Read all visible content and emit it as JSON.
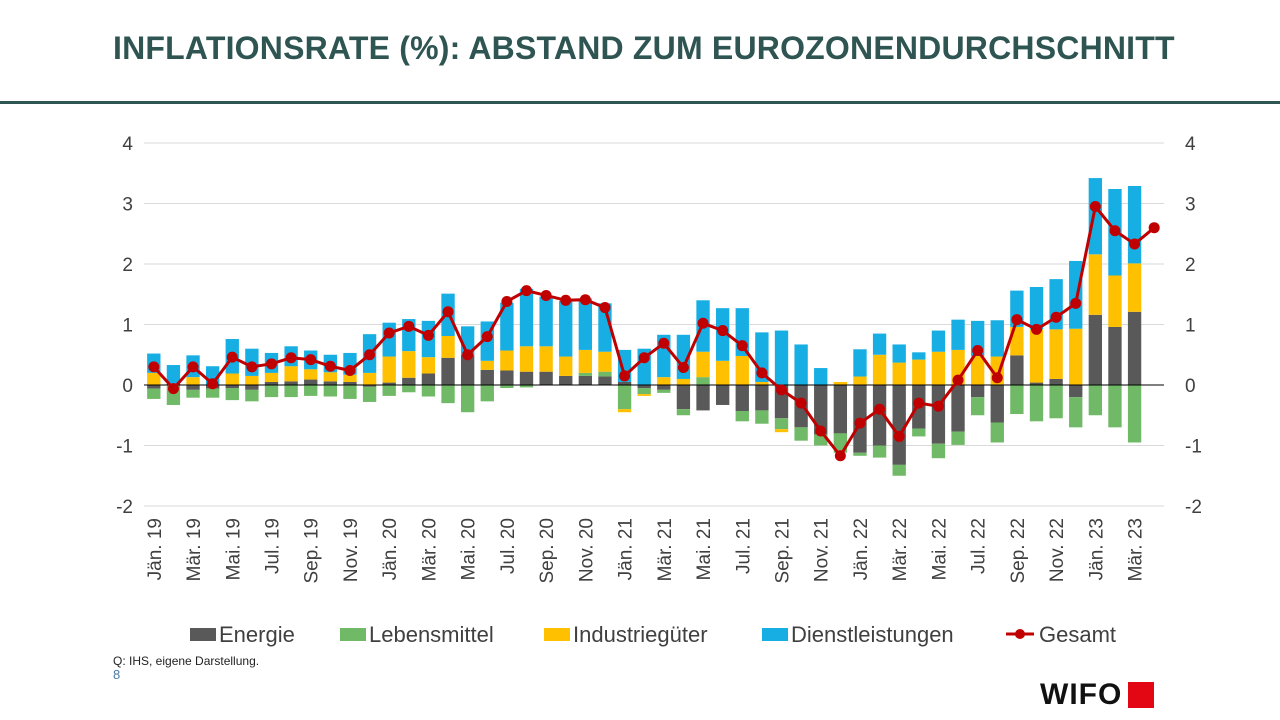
{
  "page": {
    "title": "INFLATIONSRATE (%): ABSTAND ZUM EUROZONENDURCHSCHNITT",
    "source": "Q: IHS, eigene Darstellung.",
    "page_number": "8",
    "logo_text": "WIFO",
    "colors": {
      "title": "#2f5552",
      "logo_accent": "#e30613"
    }
  },
  "chart_data": {
    "type": "bar",
    "stacked": true,
    "title": "",
    "xlabel": "",
    "ylabel": "",
    "ylim": [
      -2,
      4
    ],
    "yticks": [
      -2,
      -1,
      0,
      1,
      2,
      3,
      4
    ],
    "secondary_axis": true,
    "grid": true,
    "legend_position": "bottom",
    "categories": [
      "Jän. 19",
      "Feb. 19",
      "Mär. 19",
      "Apr. 19",
      "Mai. 19",
      "Jun. 19",
      "Jul. 19",
      "Aug. 19",
      "Sep. 19",
      "Okt. 19",
      "Nov. 19",
      "Dez. 19",
      "Jän. 20",
      "Feb. 20",
      "Mär. 20",
      "Apr. 20",
      "Mai. 20",
      "Jun. 20",
      "Jul. 20",
      "Aug. 20",
      "Sep. 20",
      "Okt. 20",
      "Nov. 20",
      "Dez. 20",
      "Jän. 21",
      "Feb. 21",
      "Mär. 21",
      "Apr. 21",
      "Mai. 21",
      "Jun. 21",
      "Jul. 21",
      "Aug. 21",
      "Sep. 21",
      "Okt. 21",
      "Nov. 21",
      "Dez. 21",
      "Jän. 22",
      "Feb. 22",
      "Mär. 22",
      "Apr. 22",
      "Mai. 22",
      "Jun. 22",
      "Jul. 22",
      "Aug. 22",
      "Sep. 22",
      "Okt. 22",
      "Nov. 22",
      "Dez. 22",
      "Jän. 23",
      "Feb. 23",
      "Mär. 23",
      "Apr. 23"
    ],
    "tick_labels": [
      "Jän. 19",
      "Mär. 19",
      "Mai. 19",
      "Jul. 19",
      "Sep. 19",
      "Nov. 19",
      "Jän. 20",
      "Mär. 20",
      "Mai. 20",
      "Jul. 20",
      "Sep. 20",
      "Nov. 20",
      "Jän. 21",
      "Mär. 21",
      "Mai. 21",
      "Jul. 21",
      "Sep. 21",
      "Nov. 21",
      "Jän. 22",
      "Mär. 22",
      "Mai. 22",
      "Jul. 22",
      "Sep. 22",
      "Nov. 22",
      "Jän. 23",
      "Mär. 23"
    ],
    "series": [
      {
        "name": "Energie",
        "kind": "bar",
        "color": "#595959",
        "values": [
          -0.06,
          0.02,
          -0.08,
          -0.06,
          -0.05,
          -0.08,
          0.05,
          0.06,
          0.09,
          0.06,
          0.05,
          -0.03,
          0.04,
          0.12,
          0.19,
          0.45,
          0.5,
          0.25,
          0.24,
          0.22,
          0.22,
          0.15,
          0.15,
          0.14,
          0.05,
          -0.05,
          -0.08,
          -0.4,
          -0.42,
          -0.33,
          -0.43,
          -0.42,
          -0.55,
          -0.7,
          -0.82,
          -0.8,
          -1.12,
          -1.0,
          -1.32,
          -0.72,
          -0.97,
          -0.77,
          -0.2,
          -0.62,
          0.49,
          0.04,
          0.1,
          -0.2,
          1.16,
          0.96,
          1.21,
          0.0
        ]
      },
      {
        "name": "Lebensmittel",
        "kind": "bar",
        "color": "#70b966",
        "values": [
          -0.17,
          -0.33,
          -0.13,
          -0.15,
          -0.2,
          -0.19,
          -0.2,
          -0.2,
          -0.18,
          -0.19,
          -0.23,
          -0.25,
          -0.18,
          -0.12,
          -0.19,
          -0.3,
          -0.45,
          -0.27,
          -0.05,
          -0.04,
          0.0,
          0.0,
          0.05,
          0.08,
          -0.4,
          -0.1,
          -0.05,
          -0.1,
          0.13,
          0.0,
          -0.17,
          -0.22,
          -0.18,
          -0.22,
          -0.18,
          -0.32,
          -0.05,
          -0.2,
          -0.18,
          -0.13,
          -0.24,
          -0.22,
          -0.3,
          -0.33,
          -0.48,
          -0.6,
          -0.55,
          -0.5,
          -0.5,
          -0.7,
          -0.95,
          0.0
        ]
      },
      {
        "name": "Industriegüter",
        "kind": "bar",
        "color": "#ffc000",
        "values": [
          0.2,
          0.0,
          0.13,
          0.0,
          0.19,
          0.15,
          0.15,
          0.25,
          0.17,
          0.15,
          0.12,
          0.2,
          0.43,
          0.44,
          0.27,
          0.36,
          0.0,
          0.15,
          0.33,
          0.42,
          0.42,
          0.32,
          0.38,
          0.33,
          -0.05,
          -0.03,
          0.13,
          0.1,
          0.42,
          0.4,
          0.48,
          0.05,
          -0.05,
          0.0,
          0.0,
          0.05,
          0.14,
          0.5,
          0.37,
          0.42,
          0.55,
          0.58,
          0.48,
          0.47,
          0.47,
          0.88,
          0.82,
          0.93,
          1.0,
          0.85,
          0.8,
          0.0
        ]
      },
      {
        "name": "Dienstleistungen",
        "kind": "bar",
        "color": "#17aee3",
        "values": [
          0.32,
          0.31,
          0.36,
          0.31,
          0.57,
          0.45,
          0.33,
          0.33,
          0.31,
          0.29,
          0.36,
          0.64,
          0.56,
          0.53,
          0.6,
          0.7,
          0.47,
          0.65,
          0.79,
          0.95,
          0.82,
          0.92,
          0.85,
          0.8,
          0.53,
          0.6,
          0.7,
          0.73,
          0.85,
          0.87,
          0.79,
          0.82,
          0.9,
          0.67,
          0.28,
          0.0,
          0.45,
          0.35,
          0.3,
          0.12,
          0.35,
          0.5,
          0.58,
          0.6,
          0.6,
          0.7,
          0.83,
          1.12,
          1.26,
          1.43,
          1.28,
          0.0
        ]
      },
      {
        "name": "Gesamt",
        "kind": "line",
        "color": "#c00000",
        "values": [
          0.3,
          -0.06,
          0.3,
          0.02,
          0.46,
          0.3,
          0.35,
          0.45,
          0.42,
          0.31,
          0.24,
          0.5,
          0.86,
          0.97,
          0.82,
          1.21,
          0.5,
          0.8,
          1.38,
          1.56,
          1.48,
          1.4,
          1.41,
          1.28,
          0.15,
          0.45,
          0.69,
          0.29,
          1.02,
          0.9,
          0.65,
          0.2,
          -0.08,
          -0.3,
          -0.76,
          -1.17,
          -0.63,
          -0.4,
          -0.85,
          -0.3,
          -0.35,
          0.08,
          0.57,
          0.12,
          1.08,
          0.92,
          1.12,
          1.35,
          2.95,
          2.55,
          2.33,
          2.6
        ]
      }
    ]
  }
}
